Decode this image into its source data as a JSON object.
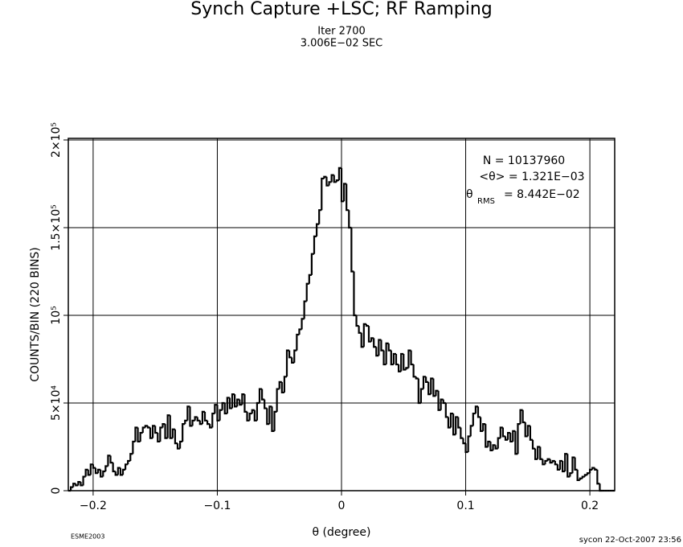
{
  "chart_data": {
    "type": "histogram",
    "title": "Synch Capture +LSC; RF Ramping",
    "subtitle": [
      "Iter 2700",
      "3.006E−02 SEC"
    ],
    "xlabel": "θ (degree)",
    "ylabel": "COUNTS/BIN (220 BINS)",
    "stats": [
      "N = 10137960",
      "<θ> =  1.321E−03"
    ],
    "rms": {
      "symbol": "θ",
      "subscript": "RMS",
      "text": "=  8.442E−02"
    },
    "footer_left": "ESME2003",
    "footer_right": "sycon 22-Oct-2007 23:56",
    "color": "#000000",
    "grid": true,
    "xlim": [
      -0.22,
      0.22
    ],
    "ylim": [
      0,
      200000
    ],
    "xticks": [
      {
        "value": -0.2,
        "label": "−0.2"
      },
      {
        "value": -0.1,
        "label": "−0.1"
      },
      0,
      0.1,
      0.2
    ],
    "yticks": [
      0,
      {
        "value": 50000,
        "label": "5×10⁴"
      },
      {
        "value": 100000,
        "label": "10⁵"
      },
      {
        "value": 150000,
        "label": "1.5×10⁵"
      },
      {
        "value": 200000,
        "label": "2×10⁵"
      }
    ],
    "bins": [
      -0.22,
      -0.218,
      -0.216,
      -0.214,
      -0.212,
      -0.21,
      -0.208,
      -0.206,
      -0.204,
      -0.202,
      -0.2,
      -0.198,
      -0.196,
      -0.194,
      -0.192,
      -0.19,
      -0.188,
      -0.186,
      -0.184,
      -0.182,
      -0.18,
      -0.178,
      -0.176,
      -0.174,
      -0.172,
      -0.17,
      -0.168,
      -0.166,
      -0.164,
      -0.162,
      -0.16,
      -0.158,
      -0.156,
      -0.154,
      -0.152,
      -0.15,
      -0.148,
      -0.146,
      -0.144,
      -0.142,
      -0.14,
      -0.138,
      -0.136,
      -0.134,
      -0.132,
      -0.13,
      -0.128,
      -0.126,
      -0.124,
      -0.122,
      -0.12,
      -0.118,
      -0.116,
      -0.114,
      -0.112,
      -0.11,
      -0.108,
      -0.106,
      -0.104,
      -0.102,
      -0.1,
      -0.098,
      -0.096,
      -0.094,
      -0.092,
      -0.09,
      -0.088,
      -0.086,
      -0.084,
      -0.082,
      -0.08,
      -0.078,
      -0.076,
      -0.074,
      -0.072,
      -0.07,
      -0.068,
      -0.066,
      -0.064,
      -0.062,
      -0.06,
      -0.058,
      -0.056,
      -0.054,
      -0.052,
      -0.05,
      -0.048,
      -0.046,
      -0.044,
      -0.042,
      -0.04,
      -0.038,
      -0.036,
      -0.034,
      -0.032,
      -0.03,
      -0.028,
      -0.026,
      -0.024,
      -0.022,
      -0.02,
      -0.018,
      -0.016,
      -0.014,
      -0.012,
      -0.01,
      -0.008,
      -0.006,
      -0.004,
      -0.002,
      0,
      0.002,
      0.004,
      0.006,
      0.008,
      0.01,
      0.012,
      0.014,
      0.016,
      0.018,
      0.02,
      0.022,
      0.024,
      0.026,
      0.028,
      0.03,
      0.032,
      0.034,
      0.036,
      0.038,
      0.04,
      0.042,
      0.044,
      0.046,
      0.048,
      0.05,
      0.052,
      0.054,
      0.056,
      0.058,
      0.06,
      0.062,
      0.064,
      0.066,
      0.068,
      0.07,
      0.072,
      0.074,
      0.076,
      0.078,
      0.08,
      0.082,
      0.084,
      0.086,
      0.088,
      0.09,
      0.092,
      0.094,
      0.096,
      0.098,
      0.1,
      0.102,
      0.104,
      0.106,
      0.108,
      0.11,
      0.112,
      0.114,
      0.116,
      0.118,
      0.12,
      0.122,
      0.124,
      0.126,
      0.128,
      0.13,
      0.132,
      0.134,
      0.136,
      0.138,
      0.14,
      0.142,
      0.144,
      0.146,
      0.148,
      0.15,
      0.152,
      0.154,
      0.156,
      0.158,
      0.16,
      0.162,
      0.164,
      0.166,
      0.168,
      0.17,
      0.172,
      0.174,
      0.176,
      0.178,
      0.18,
      0.182,
      0.184,
      0.186,
      0.188,
      0.19,
      0.192,
      0.194,
      0.196,
      0.198,
      0.2,
      0.202,
      0.204,
      0.206,
      0.208,
      0.21,
      0.212,
      0.214,
      0.216,
      0.218,
      0.22
    ],
    "values": [
      0,
      2000,
      4000,
      3000,
      5000,
      3000,
      8000,
      12000,
      9000,
      15000,
      13000,
      10000,
      12000,
      8000,
      11000,
      14000,
      20000,
      16000,
      11000,
      9000,
      13000,
      9000,
      12000,
      15000,
      17000,
      21000,
      28000,
      36000,
      28000,
      33000,
      36000,
      37000,
      36000,
      30000,
      37000,
      33000,
      28000,
      36000,
      38000,
      30000,
      43000,
      30000,
      35000,
      27000,
      24000,
      28000,
      38000,
      40000,
      48000,
      37000,
      40000,
      42000,
      40000,
      38000,
      45000,
      40000,
      38000,
      36000,
      44000,
      49000,
      40000,
      46000,
      50000,
      44000,
      53000,
      47000,
      55000,
      48000,
      52000,
      49000,
      55000,
      45000,
      40000,
      44000,
      46000,
      40000,
      50000,
      58000,
      52000,
      47000,
      38000,
      48000,
      34000,
      45000,
      58000,
      62000,
      56000,
      65000,
      80000,
      76000,
      73000,
      80000,
      89000,
      92000,
      98000,
      108000,
      118000,
      123000,
      135000,
      145000,
      152000,
      160000,
      178000,
      179000,
      174000,
      176000,
      180000,
      176000,
      177000,
      184000,
      165000,
      175000,
      160000,
      150000,
      125000,
      100000,
      94000,
      90000,
      82000,
      95000,
      94000,
      85000,
      87000,
      82000,
      77000,
      86000,
      80000,
      72000,
      84000,
      80000,
      72000,
      78000,
      72000,
      68000,
      78000,
      69000,
      70000,
      80000,
      72000,
      65000,
      64000,
      50000,
      58000,
      65000,
      62000,
      55000,
      64000,
      54000,
      57000,
      46000,
      52000,
      50000,
      42000,
      36000,
      44000,
      32000,
      42000,
      36000,
      30000,
      27000,
      22000,
      31000,
      37000,
      44000,
      48000,
      42000,
      34000,
      38000,
      25000,
      28000,
      23000,
      26000,
      24000,
      30000,
      36000,
      31000,
      29000,
      33000,
      28000,
      34000,
      21000,
      38000,
      46000,
      39000,
      31000,
      37000,
      29000,
      24000,
      18000,
      25000,
      18000,
      15000,
      17000,
      18000,
      16000,
      17000,
      15000,
      12000,
      17000,
      11000,
      21000,
      8000,
      10000,
      19000,
      12000,
      6000,
      7000,
      8000,
      9000,
      10000,
      12000,
      13000,
      12000,
      4000,
      0,
      0,
      0,
      0,
      0,
      0
    ]
  }
}
